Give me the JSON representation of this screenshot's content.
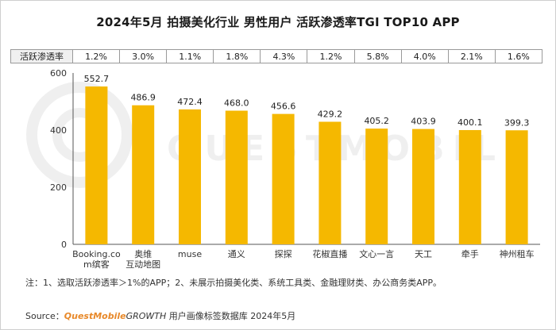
{
  "title": "2024年5月 拍摄美化行业 男性用户 活跃渗透率TGI TOP10 APP",
  "rate_row": {
    "header": "活跃渗透率",
    "values": [
      "1.2%",
      "3.0%",
      "1.1%",
      "1.8%",
      "4.3%",
      "1.2%",
      "5.8%",
      "4.0%",
      "2.1%",
      "1.6%"
    ]
  },
  "chart_data": {
    "type": "bar",
    "categories": [
      [
        "Booking.co",
        "m缤客"
      ],
      [
        "奥维",
        "互动地图"
      ],
      [
        "muse"
      ],
      [
        "通义"
      ],
      [
        "探探"
      ],
      [
        "花椒直播"
      ],
      [
        "文心一言"
      ],
      [
        "天工"
      ],
      [
        "牵手"
      ],
      [
        "神州租车"
      ]
    ],
    "values": [
      552.7,
      486.9,
      472.4,
      468.0,
      456.6,
      429.2,
      405.2,
      403.9,
      400.1,
      399.3
    ],
    "value_labels": [
      "552.7",
      "486.9",
      "472.4",
      "468.0",
      "456.6",
      "429.2",
      "405.2",
      "403.9",
      "400.1",
      "399.3"
    ],
    "ylim": [
      0,
      600
    ],
    "yticks": [
      "0",
      "200",
      "400",
      "600"
    ],
    "bar_color": "#f5b800",
    "grid": false
  },
  "note": "注：1、选取活跃渗透率＞1%的APP；2、未展示拍摄美化类、系统工具类、金融理财类、办公商务类APP。",
  "source": {
    "prefix": "Source：",
    "brand": "QuestMobile",
    "brand2": "GROWTH",
    "suffix": " 用户画像标签数据库 2024年5月"
  },
  "watermark": "QUESTMOBILE"
}
